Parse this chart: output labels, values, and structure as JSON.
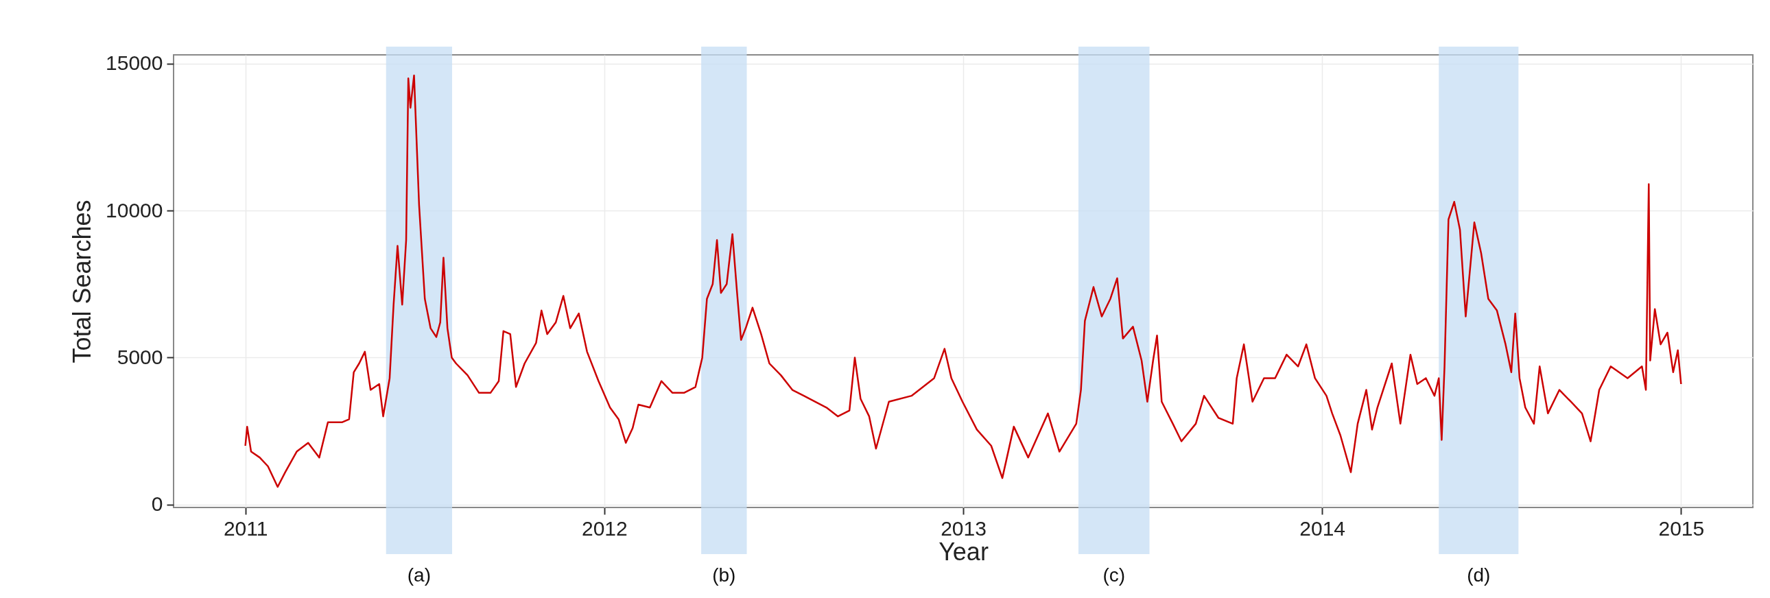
{
  "chart_data": {
    "type": "line",
    "xlabel": "Year",
    "ylabel": "Total Searches",
    "x": [
      2011.0,
      2011.005,
      2011.016,
      2011.04,
      2011.063,
      2011.09,
      2011.111,
      2011.143,
      2011.175,
      2011.206,
      2011.23,
      2011.27,
      2011.289,
      2011.302,
      2011.317,
      2011.333,
      2011.349,
      2011.373,
      2011.384,
      2011.402,
      2011.413,
      2011.424,
      2011.437,
      2011.448,
      2011.454,
      2011.46,
      2011.47,
      2011.484,
      2011.5,
      2011.516,
      2011.532,
      2011.543,
      2011.552,
      2011.563,
      2011.575,
      2011.587,
      2011.619,
      2011.651,
      2011.683,
      2011.706,
      2011.719,
      2011.738,
      2011.754,
      2011.778,
      2011.81,
      2011.825,
      2011.841,
      2011.865,
      2011.886,
      2011.905,
      2011.929,
      2011.952,
      2011.984,
      2012.016,
      2012.04,
      2012.06,
      2012.079,
      2012.095,
      2012.127,
      2012.159,
      2012.19,
      2012.222,
      2012.254,
      2012.273,
      2012.286,
      2012.302,
      2012.314,
      2012.325,
      2012.341,
      2012.357,
      2012.37,
      2012.381,
      2012.394,
      2012.413,
      2012.437,
      2012.46,
      2012.492,
      2012.524,
      2012.556,
      2012.587,
      2012.619,
      2012.651,
      2012.683,
      2012.698,
      2012.714,
      2012.738,
      2012.757,
      2012.793,
      2012.856,
      2012.919,
      2012.948,
      2012.967,
      2012.998,
      2013.038,
      2013.078,
      2013.109,
      2013.141,
      2013.181,
      2013.236,
      2013.268,
      2013.315,
      2013.328,
      2013.339,
      2013.363,
      2013.386,
      2013.41,
      2013.429,
      2013.445,
      2013.473,
      2013.497,
      2013.513,
      2013.529,
      2013.54,
      2013.553,
      2013.584,
      2013.608,
      2013.648,
      2013.671,
      2013.711,
      2013.751,
      2013.762,
      2013.782,
      2013.806,
      2013.838,
      2013.869,
      2013.901,
      2013.933,
      2013.956,
      2013.98,
      2014.012,
      2014.028,
      2014.051,
      2014.08,
      2014.099,
      2014.123,
      2014.139,
      2014.154,
      2014.194,
      2014.218,
      2014.246,
      2014.265,
      2014.289,
      2014.313,
      2014.325,
      2014.333,
      2014.341,
      2014.352,
      2014.368,
      2014.384,
      2014.4,
      2014.424,
      2014.443,
      2014.463,
      2014.487,
      2014.511,
      2014.527,
      2014.538,
      2014.55,
      2014.566,
      2014.59,
      2014.606,
      2014.629,
      2014.661,
      2014.693,
      2014.724,
      2014.748,
      2014.772,
      2014.804,
      2014.851,
      2014.891,
      2014.902,
      2014.91,
      2014.914,
      2014.927,
      2014.943,
      2014.962,
      2014.978,
      2014.991,
      2015.0
    ],
    "series": [
      {
        "color": "#cc0000",
        "values": [
          2000,
          2650,
          1800,
          1600,
          1300,
          600,
          1100,
          1800,
          2100,
          1600,
          2800,
          2800,
          2900,
          4500,
          4800,
          5200,
          3900,
          4100,
          3000,
          4300,
          6800,
          8800,
          6800,
          9000,
          14500,
          13500,
          14600,
          10200,
          7000,
          6000,
          5700,
          6200,
          8400,
          6000,
          5000,
          4800,
          4400,
          3800,
          3800,
          4200,
          5900,
          5800,
          4000,
          4800,
          5500,
          6600,
          5800,
          6200,
          7100,
          6000,
          6500,
          5200,
          4200,
          3300,
          2900,
          2100,
          2600,
          3400,
          3300,
          4200,
          3800,
          3800,
          4000,
          5000,
          7000,
          7500,
          9000,
          7200,
          7500,
          9200,
          7200,
          5600,
          6000,
          6700,
          5800,
          4800,
          4400,
          3900,
          3700,
          3500,
          3300,
          3000,
          3200,
          5000,
          3600,
          3000,
          1900,
          3500,
          3700,
          4300,
          5300,
          4300,
          3500,
          2550,
          2000,
          900,
          2650,
          1600,
          3100,
          1800,
          2750,
          3900,
          6250,
          7400,
          6400,
          7000,
          7700,
          5650,
          6050,
          4900,
          3500,
          4900,
          5750,
          3500,
          2750,
          2150,
          2750,
          3700,
          2950,
          2750,
          4300,
          5450,
          3500,
          4300,
          4300,
          5100,
          4700,
          5450,
          4300,
          3700,
          3100,
          2350,
          1100,
          2750,
          3900,
          2550,
          3300,
          4800,
          2750,
          5100,
          4100,
          4300,
          3700,
          4300,
          2200,
          4700,
          9700,
          10300,
          9350,
          6400,
          9600,
          8550,
          7000,
          6600,
          5450,
          4500,
          6500,
          4300,
          3300,
          2750,
          4700,
          3100,
          3900,
          3500,
          3100,
          2150,
          3900,
          4700,
          4300,
          4700,
          3900,
          10900,
          4900,
          6650,
          5450,
          5850,
          4500,
          5250,
          4100
        ]
      }
    ],
    "xlim": [
      2010.8,
      2015.2
    ],
    "xticks": [
      2011,
      2012,
      2013,
      2014,
      2015
    ],
    "ylim": [
      -100,
      15300
    ],
    "yticks": [
      0,
      5000,
      10000,
      15000
    ],
    "grid": true,
    "bands": [
      {
        "axis": "x",
        "from": 2011.392,
        "to": 2011.576,
        "label": "(a)",
        "color": "#c5ddf4"
      },
      {
        "axis": "x",
        "from": 2012.27,
        "to": 2012.397,
        "label": "(b)",
        "color": "#c5ddf4"
      },
      {
        "axis": "x",
        "from": 2013.321,
        "to": 2013.519,
        "label": "(c)",
        "color": "#c5ddf4"
      },
      {
        "axis": "x",
        "from": 2014.325,
        "to": 2014.547,
        "label": "(d)",
        "color": "#c5ddf4"
      }
    ]
  }
}
